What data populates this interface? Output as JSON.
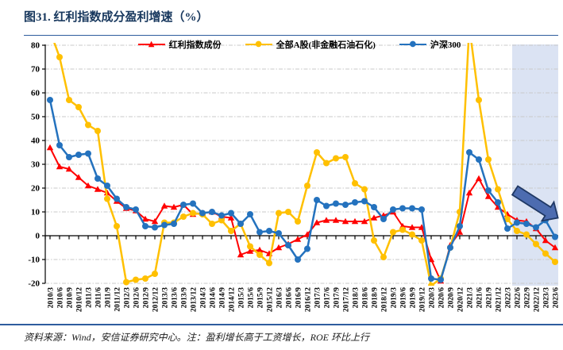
{
  "title": "图31. 红利指数成分盈利增速（%）",
  "source_note": "资料来源：Wind，安信证券研究中心。注：盈利增长高于工资增长，ROE 环比上行",
  "chart_data": {
    "type": "line",
    "title": "图31. 红利指数成分盈利增速（%）",
    "legend_position": "top-center",
    "grid": "horizontal dash-dot, light gray",
    "ylim": [
      -20,
      80
    ],
    "yticks": [
      -20,
      -10,
      0,
      10,
      20,
      30,
      40,
      50,
      60,
      70,
      80
    ],
    "categories": [
      "2010/3",
      "2010/6",
      "2010/9",
      "2010/12",
      "2011/3",
      "2011/6",
      "2011/9",
      "2011/12",
      "2012/3",
      "2012/6",
      "2012/9",
      "2012/12",
      "2013/3",
      "2013/6",
      "2013/9",
      "2013/12",
      "2014/3",
      "2014/6",
      "2014/9",
      "2014/12",
      "2015/3",
      "2015/6",
      "2015/9",
      "2015/12",
      "2016/3",
      "2016/6",
      "2016/9",
      "2016/12",
      "2017/3",
      "2017/6",
      "2017/9",
      "2017/12",
      "2018/3",
      "2018/6",
      "2018/9",
      "2018/12",
      "2019/3",
      "2019/6",
      "2019/9",
      "2019/12",
      "2020/3",
      "2020/6",
      "2020/9",
      "2020/12",
      "2021/3",
      "2021/6",
      "2021/9",
      "2021/12",
      "2022/3",
      "2022/6",
      "2022/9",
      "2022/12",
      "2023/3",
      "2023/6"
    ],
    "series": [
      {
        "name": "红利指数成份",
        "color": "#ff0000",
        "marker": "triangle",
        "values": [
          37,
          29,
          28,
          24.5,
          21,
          19.5,
          18,
          14.5,
          11.5,
          10.5,
          7,
          6,
          12.5,
          12,
          13,
          9,
          9.5,
          10,
          8,
          7.5,
          -8,
          -6.5,
          -6,
          -7.5,
          -5,
          -3.5,
          -1.5,
          0.5,
          5.5,
          6.5,
          6.5,
          6,
          6,
          6,
          7.5,
          8.5,
          10,
          4,
          3.5,
          3.5,
          -10,
          -19,
          -4,
          1.5,
          18,
          24,
          16.5,
          12,
          9,
          6.5,
          6,
          3,
          -2,
          -5
        ]
      },
      {
        "name": "全部A股(非金融石油石化)",
        "color": "#ffc000",
        "marker": "circle",
        "values": [
          86,
          75,
          57,
          54,
          46.5,
          44,
          15.5,
          4,
          -19.5,
          -18.5,
          -18,
          -16,
          5.5,
          5.5,
          8,
          9.5,
          9,
          5,
          6.5,
          2,
          5,
          -4.5,
          -8,
          -11.5,
          9.5,
          10,
          6,
          21,
          35,
          30.5,
          32.5,
          33,
          22,
          19.5,
          -2,
          -9,
          1.5,
          2.5,
          0.5,
          -2,
          -21,
          -18,
          -5,
          10,
          88,
          57,
          32,
          19.5,
          7,
          2,
          0.5,
          -3.5,
          -7.5,
          -11
        ]
      },
      {
        "name": "沪深300",
        "color": "#2472be",
        "marker": "circle",
        "values": [
          57,
          38,
          33,
          34,
          34.5,
          24,
          21,
          15.5,
          12,
          11,
          4,
          3.5,
          4.5,
          5,
          13,
          13.5,
          9.5,
          10,
          8.5,
          9.5,
          5,
          9,
          1.5,
          2,
          1,
          -4,
          -10,
          -5.5,
          15,
          12.5,
          13.5,
          13,
          14,
          14.5,
          12,
          7,
          11,
          11.5,
          11.5,
          11,
          -18,
          -18.5,
          -5,
          4,
          35,
          32,
          19,
          14,
          3,
          5.5,
          5,
          3.5,
          6.5,
          -0.5
        ]
      }
    ],
    "highlight_region": {
      "from_category": "2022/6",
      "to_category": "2023/6",
      "color": "#dbe3f3"
    },
    "annotation_arrow": {
      "direction": "down-right",
      "fill": "#4d6cb0",
      "border": "#1f3864",
      "from": {
        "category_index": 48.8,
        "value": 19
      },
      "to": {
        "category_index": 53.3,
        "value": 7.5
      }
    }
  }
}
